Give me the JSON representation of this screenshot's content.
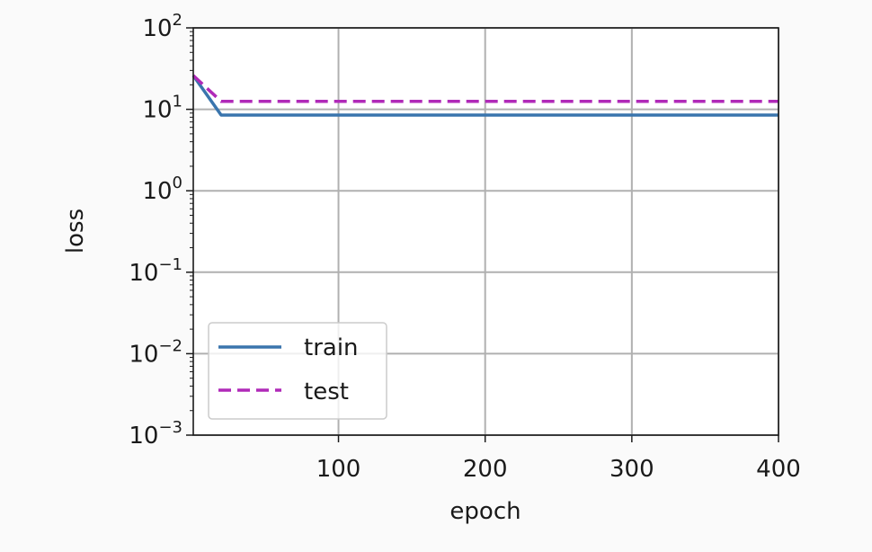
{
  "chart_data": {
    "type": "line",
    "xlabel": "epoch",
    "ylabel": "loss",
    "xlim": [
      1,
      400
    ],
    "ylim": [
      0.001,
      100
    ],
    "yscale": "log",
    "grid": true,
    "legend_position": "lower-left",
    "x_ticks": [
      {
        "value": 100,
        "label": "100"
      },
      {
        "value": 200,
        "label": "200"
      },
      {
        "value": 300,
        "label": "300"
      },
      {
        "value": 400,
        "label": "400"
      }
    ],
    "y_ticks": [
      {
        "value": 0.001,
        "base": "10",
        "exp": "−3"
      },
      {
        "value": 0.01,
        "base": "10",
        "exp": "−2"
      },
      {
        "value": 0.1,
        "base": "10",
        "exp": "−1"
      },
      {
        "value": 1,
        "base": "10",
        "exp": "0"
      },
      {
        "value": 10,
        "base": "10",
        "exp": "1"
      },
      {
        "value": 100,
        "base": "10",
        "exp": "2"
      }
    ],
    "series": [
      {
        "name": "train",
        "color": "#3a75ad",
        "dash": "solid",
        "x": [
          1,
          20,
          40,
          60,
          80,
          100,
          120,
          140,
          160,
          180,
          200,
          220,
          240,
          260,
          280,
          300,
          320,
          340,
          360,
          380,
          400
        ],
        "y": [
          26,
          8.5,
          8.5,
          8.5,
          8.5,
          8.5,
          8.5,
          8.5,
          8.5,
          8.5,
          8.5,
          8.5,
          8.5,
          8.5,
          8.5,
          8.5,
          8.5,
          8.5,
          8.5,
          8.5,
          8.5
        ]
      },
      {
        "name": "test",
        "color": "#b02ab8",
        "dash": "dashed",
        "x": [
          1,
          20,
          40,
          60,
          80,
          100,
          120,
          140,
          160,
          180,
          200,
          220,
          240,
          260,
          280,
          300,
          320,
          340,
          360,
          380,
          400
        ],
        "y": [
          26,
          12.5,
          12.5,
          12.5,
          12.5,
          12.5,
          12.5,
          12.5,
          12.5,
          12.5,
          12.5,
          12.5,
          12.5,
          12.5,
          12.5,
          12.5,
          12.5,
          12.5,
          12.5,
          12.5,
          12.5
        ]
      }
    ]
  }
}
